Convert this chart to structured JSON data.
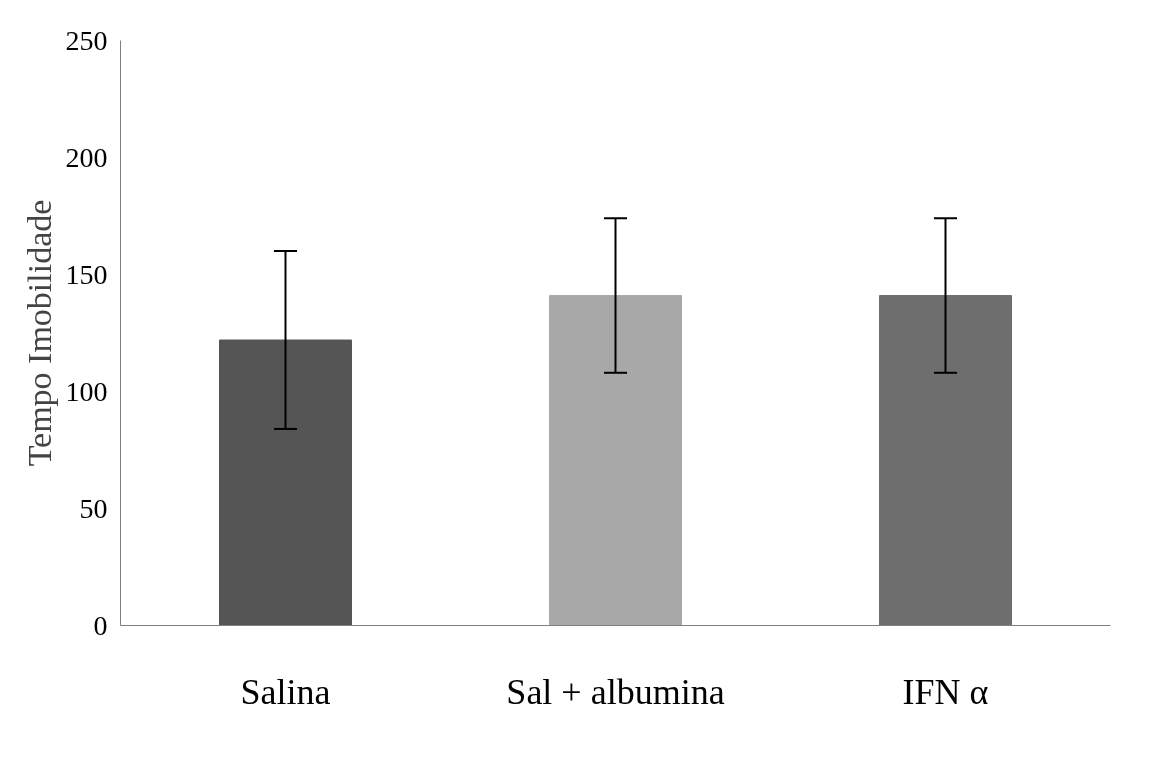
{
  "chart_data": {
    "type": "bar",
    "ylabel": "Tempo Imobilidade",
    "categories": [
      "Salina",
      "Sal + albumina",
      "IFN α"
    ],
    "values": [
      122,
      141,
      141
    ],
    "colors": [
      "#555555",
      "#a8a8a8",
      "#6e6e6e"
    ],
    "errors": [
      38,
      33,
      33
    ],
    "ylim": [
      0,
      250
    ],
    "yticks": [
      0,
      50,
      100,
      150,
      200,
      250
    ],
    "grid": false
  }
}
